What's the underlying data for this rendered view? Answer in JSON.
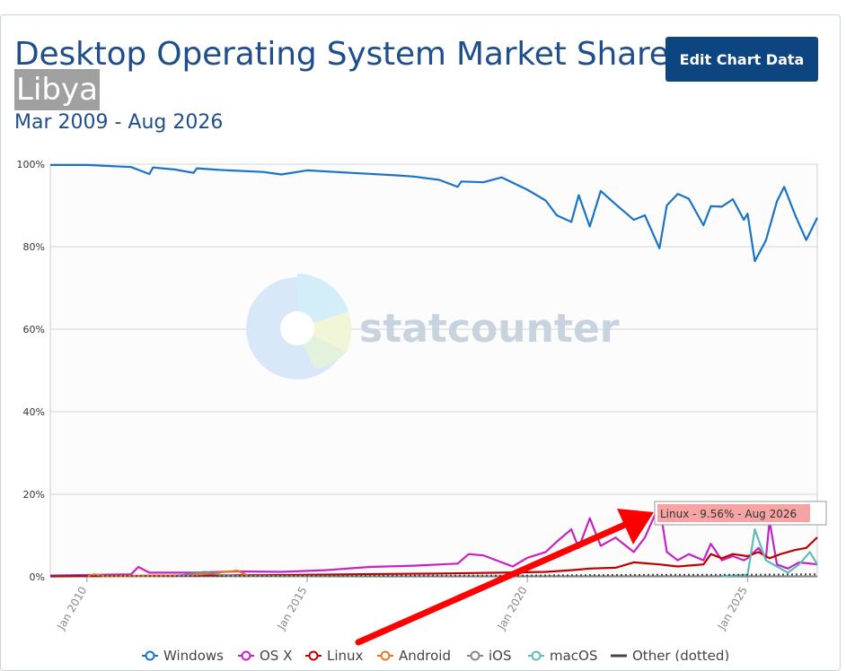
{
  "header": {
    "title": "Desktop Operating System Market Share",
    "region": "Libya",
    "date_range": "Mar 2009 - Aug 2026",
    "edit_button": "Edit Chart Data"
  },
  "watermark": "statcounter",
  "tooltip": {
    "text": "Linux - 9.56% - Aug 2026"
  },
  "chart_data": {
    "type": "line",
    "title": "Desktop Operating System Market Share",
    "x_range": [
      "2009-03",
      "2026-08"
    ],
    "ylim": [
      0,
      100
    ],
    "y_ticks": [
      "0%",
      "20%",
      "40%",
      "60%",
      "80%",
      "100%"
    ],
    "x_ticks": [
      {
        "label": "Jan 2010",
        "x": "2010-01"
      },
      {
        "label": "Jan 2015",
        "x": "2015-01"
      },
      {
        "label": "Jan 2020",
        "x": "2020-01"
      },
      {
        "label": "Jan 2025",
        "x": "2025-01"
      }
    ],
    "grid": true,
    "legend_position": "bottom",
    "series": [
      {
        "name": "Windows",
        "color": "#1a73c8",
        "style": "solid",
        "points": [
          [
            "2009-03",
            99.8
          ],
          [
            "2010-01",
            99.8
          ],
          [
            "2011-01",
            99.3
          ],
          [
            "2011-06",
            97.6
          ],
          [
            "2011-07",
            99.2
          ],
          [
            "2012-01",
            98.7
          ],
          [
            "2012-06",
            97.9
          ],
          [
            "2012-07",
            99.0
          ],
          [
            "2013-01",
            98.6
          ],
          [
            "2014-01",
            98.1
          ],
          [
            "2014-06",
            97.5
          ],
          [
            "2015-01",
            98.5
          ],
          [
            "2016-01",
            97.9
          ],
          [
            "2017-01",
            97.3
          ],
          [
            "2017-06",
            97.0
          ],
          [
            "2018-01",
            96.2
          ],
          [
            "2018-06",
            94.5
          ],
          [
            "2018-07",
            95.8
          ],
          [
            "2019-01",
            95.6
          ],
          [
            "2019-06",
            96.8
          ],
          [
            "2020-01",
            93.8
          ],
          [
            "2020-06",
            91.2
          ],
          [
            "2020-09",
            87.6
          ],
          [
            "2021-01",
            86.0
          ],
          [
            "2021-03",
            92.5
          ],
          [
            "2021-06",
            84.9
          ],
          [
            "2021-09",
            93.5
          ],
          [
            "2022-01",
            90.3
          ],
          [
            "2022-06",
            86.5
          ],
          [
            "2022-09",
            87.6
          ],
          [
            "2023-01",
            79.6
          ],
          [
            "2023-03",
            90.0
          ],
          [
            "2023-06",
            92.8
          ],
          [
            "2023-09",
            91.6
          ],
          [
            "2024-01",
            85.2
          ],
          [
            "2024-03",
            89.8
          ],
          [
            "2024-06",
            89.7
          ],
          [
            "2024-09",
            91.5
          ],
          [
            "2024-12",
            86.5
          ],
          [
            "2025-01",
            88.0
          ],
          [
            "2025-03",
            76.5
          ],
          [
            "2025-06",
            81.5
          ],
          [
            "2025-09",
            91.0
          ],
          [
            "2025-11",
            94.5
          ],
          [
            "2026-02",
            87.6
          ],
          [
            "2026-05",
            81.6
          ],
          [
            "2026-08",
            87.0
          ]
        ]
      },
      {
        "name": "OS X",
        "color": "#c622c6",
        "style": "solid",
        "points": [
          [
            "2009-03",
            0.3
          ],
          [
            "2011-01",
            0.6
          ],
          [
            "2011-03",
            2.4
          ],
          [
            "2011-06",
            1.0
          ],
          [
            "2012-06",
            1.0
          ],
          [
            "2013-06",
            1.3
          ],
          [
            "2014-06",
            1.2
          ],
          [
            "2015-06",
            1.6
          ],
          [
            "2016-06",
            2.4
          ],
          [
            "2017-06",
            2.7
          ],
          [
            "2018-06",
            3.2
          ],
          [
            "2018-09",
            5.5
          ],
          [
            "2019-01",
            5.2
          ],
          [
            "2019-06",
            3.5
          ],
          [
            "2019-09",
            2.5
          ],
          [
            "2020-01",
            4.6
          ],
          [
            "2020-06",
            6.0
          ],
          [
            "2020-09",
            8.5
          ],
          [
            "2021-01",
            11.5
          ],
          [
            "2021-03",
            7.0
          ],
          [
            "2021-06",
            14.2
          ],
          [
            "2021-09",
            7.5
          ],
          [
            "2022-01",
            9.5
          ],
          [
            "2022-06",
            6.0
          ],
          [
            "2022-09",
            9.5
          ],
          [
            "2023-01",
            17.5
          ],
          [
            "2023-03",
            6.0
          ],
          [
            "2023-06",
            4.0
          ],
          [
            "2023-09",
            5.5
          ],
          [
            "2024-01",
            4.0
          ],
          [
            "2024-03",
            8.0
          ],
          [
            "2024-06",
            4.0
          ],
          [
            "2024-09",
            5.0
          ],
          [
            "2024-12",
            4.0
          ],
          [
            "2025-01",
            4.5
          ],
          [
            "2025-04",
            7.0
          ],
          [
            "2025-06",
            4.5
          ],
          [
            "2025-07",
            13.5
          ],
          [
            "2025-09",
            3.0
          ],
          [
            "2025-12",
            2.0
          ],
          [
            "2026-03",
            3.5
          ],
          [
            "2026-08",
            3.0
          ]
        ]
      },
      {
        "name": "Linux",
        "color": "#c00000",
        "style": "solid",
        "points": [
          [
            "2009-03",
            0.1
          ],
          [
            "2012-01",
            0.3
          ],
          [
            "2014-01",
            0.4
          ],
          [
            "2016-01",
            0.6
          ],
          [
            "2018-01",
            0.8
          ],
          [
            "2019-06",
            1.0
          ],
          [
            "2020-06",
            1.2
          ],
          [
            "2021-01",
            1.6
          ],
          [
            "2021-06",
            2.0
          ],
          [
            "2022-01",
            2.2
          ],
          [
            "2022-06",
            3.5
          ],
          [
            "2023-01",
            3.0
          ],
          [
            "2023-06",
            2.5
          ],
          [
            "2024-01",
            3.0
          ],
          [
            "2024-03",
            5.5
          ],
          [
            "2024-06",
            4.5
          ],
          [
            "2024-09",
            5.5
          ],
          [
            "2025-01",
            5.0
          ],
          [
            "2025-04",
            6.0
          ],
          [
            "2025-07",
            4.5
          ],
          [
            "2025-10",
            5.5
          ],
          [
            "2026-02",
            6.5
          ],
          [
            "2026-05",
            7.0
          ],
          [
            "2026-08",
            9.56
          ]
        ]
      },
      {
        "name": "Android",
        "color": "#e87722",
        "style": "solid",
        "points": [
          [
            "2010-01",
            0.1
          ],
          [
            "2010-03",
            0.6
          ],
          [
            "2010-06",
            0.1
          ],
          [
            "2012-06",
            0.4
          ],
          [
            "2013-06",
            1.5
          ],
          [
            "2013-09",
            0.2
          ]
        ]
      },
      {
        "name": "iOS",
        "color": "#888888",
        "style": "solid",
        "points": [
          [
            "2012-01",
            0.1
          ],
          [
            "2012-06",
            0.8
          ],
          [
            "2012-09",
            1.2
          ],
          [
            "2013-01",
            0.5
          ],
          [
            "2013-06",
            0.2
          ],
          [
            "2016-01",
            0.1
          ],
          [
            "2020-01",
            0.1
          ],
          [
            "2026-08",
            0.1
          ]
        ]
      },
      {
        "name": "macOS",
        "color": "#5dbcbc",
        "style": "solid",
        "points": [
          [
            "2024-06",
            0.2
          ],
          [
            "2025-01",
            0.5
          ],
          [
            "2025-03",
            11.5
          ],
          [
            "2025-06",
            4.0
          ],
          [
            "2025-09",
            2.5
          ],
          [
            "2025-12",
            1.0
          ],
          [
            "2026-03",
            3.0
          ],
          [
            "2026-06",
            6.0
          ],
          [
            "2026-08",
            3.0
          ]
        ]
      },
      {
        "name": "Other (dotted)",
        "color": "#444444",
        "style": "dotted",
        "points": [
          [
            "2009-03",
            0.2
          ],
          [
            "2012-01",
            0.2
          ],
          [
            "2016-01",
            0.3
          ],
          [
            "2020-01",
            0.3
          ],
          [
            "2023-01",
            0.5
          ],
          [
            "2025-01",
            0.5
          ],
          [
            "2026-08",
            0.6
          ]
        ]
      }
    ]
  }
}
